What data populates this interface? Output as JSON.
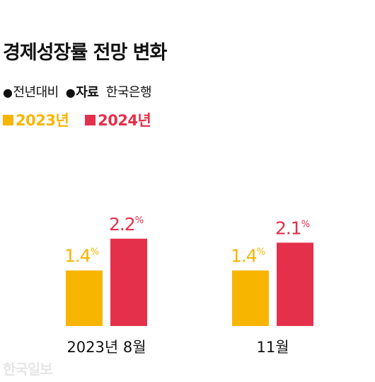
{
  "title": "경제성장률 전망 변화",
  "meta": {
    "basis": "전년대비",
    "source_label": "자료",
    "source_value": "한국은행"
  },
  "watermark": "한국일보",
  "colors": {
    "series_2023": "#F7B500",
    "series_2024": "#E4304A"
  },
  "chart_data": {
    "type": "bar",
    "title": "경제성장률 전망 변화",
    "categories": [
      "2023년 8월",
      "11월"
    ],
    "series": [
      {
        "name": "2023년",
        "values": [
          1.4,
          1.4
        ],
        "labels": [
          "1.4",
          "1.4"
        ]
      },
      {
        "name": "2024년",
        "values": [
          2.2,
          2.1
        ],
        "labels": [
          "2.2",
          "2.1"
        ]
      }
    ],
    "unit": "%",
    "legend": "top-left",
    "grid": false
  }
}
